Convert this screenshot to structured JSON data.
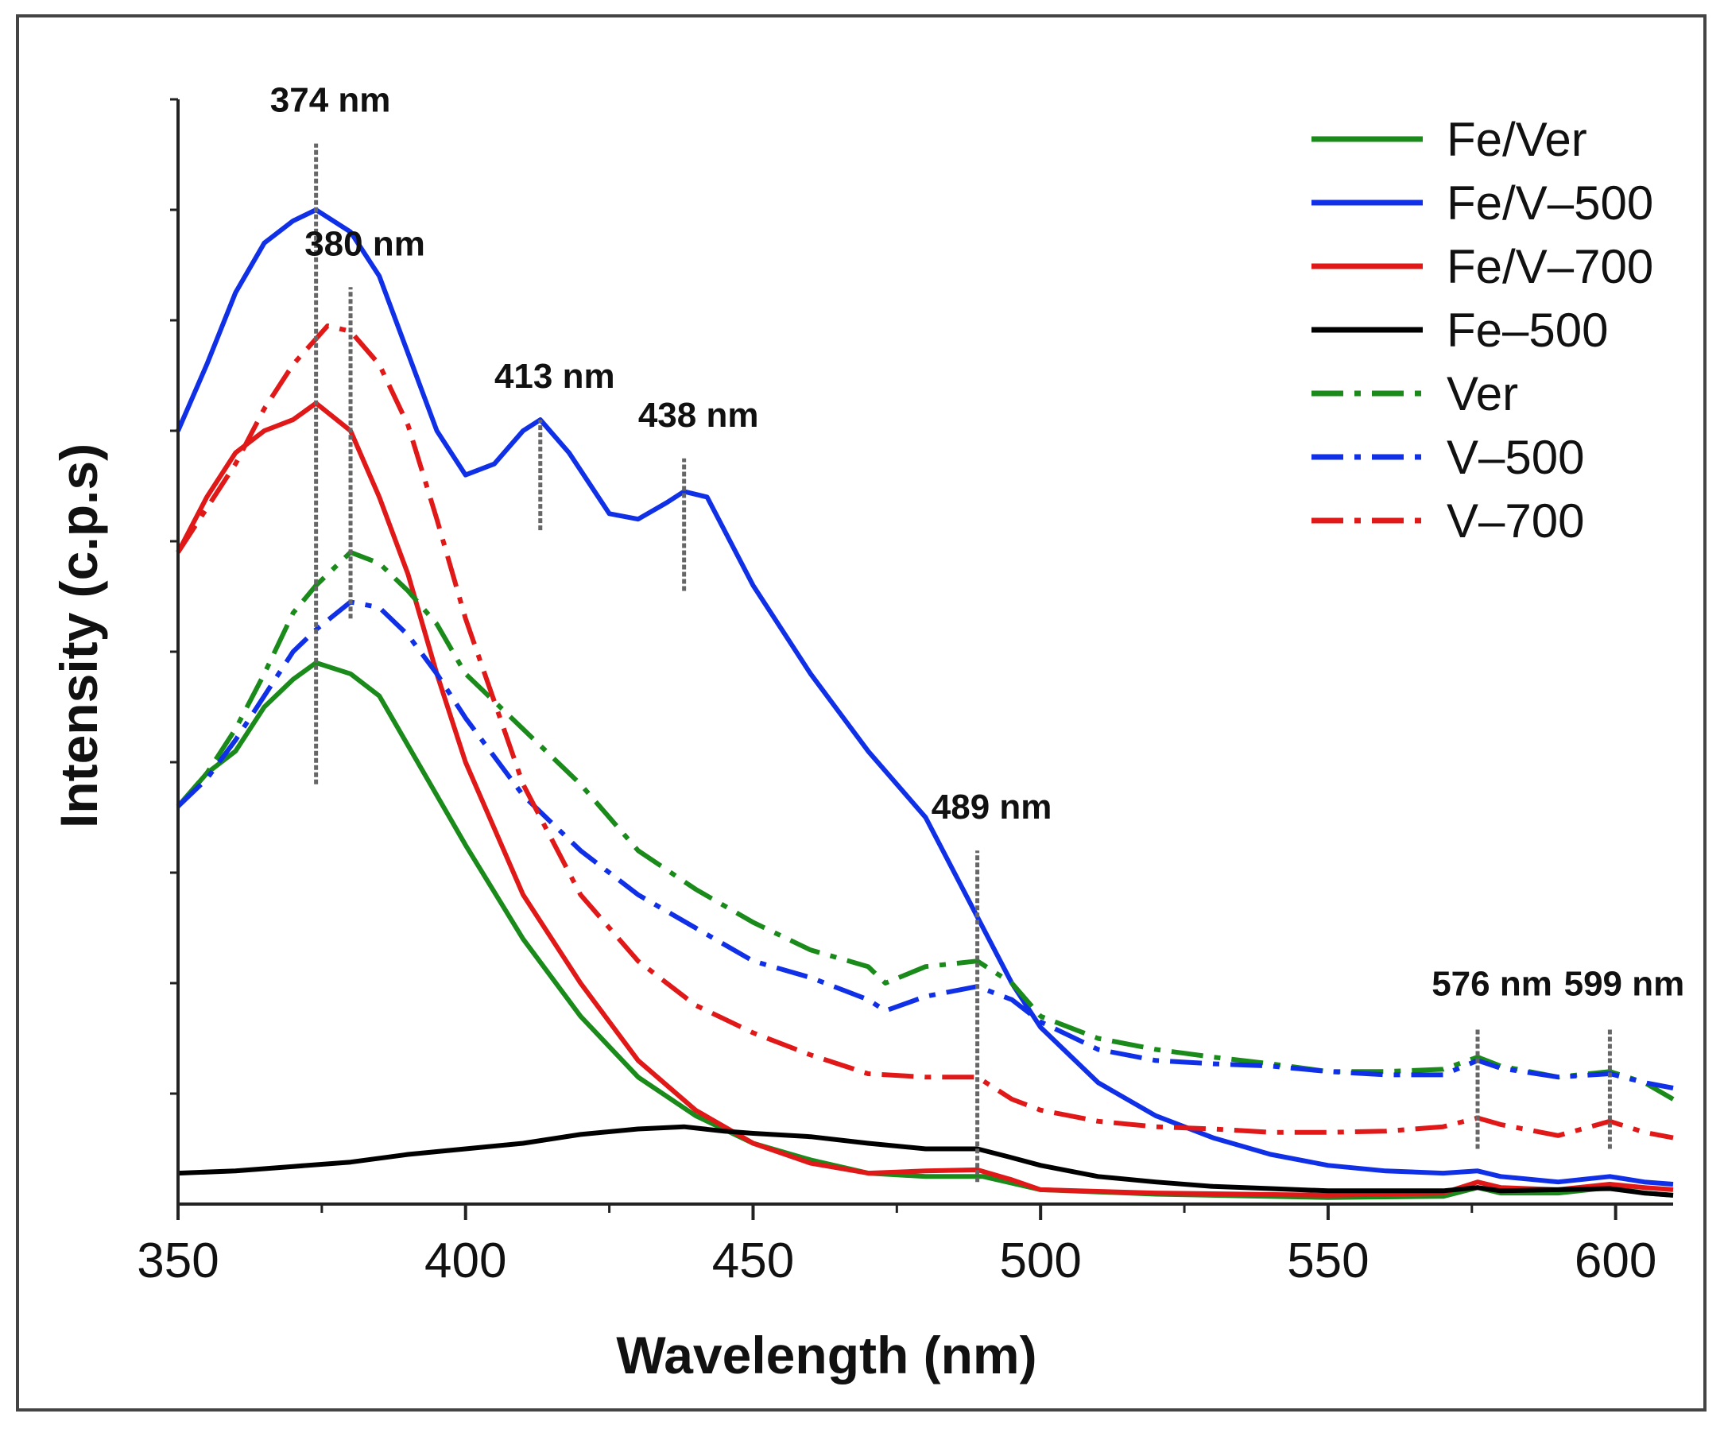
{
  "chart_data": {
    "type": "line",
    "title": "",
    "xlabel": "Wavelength (nm)",
    "ylabel": "Intensity (c.p.s)",
    "xlim": [
      350,
      610
    ],
    "ylim": [
      0,
      100
    ],
    "x_ticks": [
      350,
      400,
      450,
      500,
      550,
      600
    ],
    "x_tick_labels": [
      "350",
      "400",
      "450",
      "500",
      "550",
      "600"
    ],
    "y_tick_labels_shown": false,
    "grid": false,
    "legend_position": "top-right",
    "series": [
      {
        "name": "Fe/Ver",
        "color": "#1a8a1a",
        "style": "solid",
        "points": [
          [
            350,
            36
          ],
          [
            355,
            39
          ],
          [
            360,
            41
          ],
          [
            365,
            45
          ],
          [
            370,
            47.5
          ],
          [
            374,
            49
          ],
          [
            380,
            48
          ],
          [
            385,
            46
          ],
          [
            390,
            41.5
          ],
          [
            395,
            37
          ],
          [
            400,
            32.5
          ],
          [
            410,
            24
          ],
          [
            420,
            17
          ],
          [
            430,
            11.5
          ],
          [
            440,
            8
          ],
          [
            450,
            5.5
          ],
          [
            460,
            4
          ],
          [
            470,
            2.8
          ],
          [
            480,
            2.5
          ],
          [
            490,
            2.5
          ],
          [
            500,
            1.3
          ],
          [
            520,
            0.9
          ],
          [
            550,
            0.6
          ],
          [
            570,
            0.7
          ],
          [
            576,
            1.5
          ],
          [
            580,
            1
          ],
          [
            590,
            1
          ],
          [
            599,
            1.5
          ],
          [
            605,
            1
          ],
          [
            610,
            0.8
          ]
        ]
      },
      {
        "name": "Fe/V–500",
        "color": "#1030e8",
        "style": "solid",
        "points": [
          [
            350,
            70
          ],
          [
            355,
            76
          ],
          [
            360,
            82.5
          ],
          [
            365,
            87
          ],
          [
            370,
            89
          ],
          [
            374,
            90
          ],
          [
            380,
            88
          ],
          [
            385,
            84
          ],
          [
            390,
            77
          ],
          [
            395,
            70
          ],
          [
            400,
            66
          ],
          [
            405,
            67
          ],
          [
            410,
            70
          ],
          [
            413,
            71
          ],
          [
            418,
            68
          ],
          [
            425,
            62.5
          ],
          [
            430,
            62
          ],
          [
            435,
            63.5
          ],
          [
            438,
            64.5
          ],
          [
            442,
            64
          ],
          [
            450,
            56
          ],
          [
            460,
            48
          ],
          [
            470,
            41
          ],
          [
            480,
            35
          ],
          [
            489,
            26
          ],
          [
            495,
            20
          ],
          [
            500,
            16
          ],
          [
            510,
            11
          ],
          [
            520,
            8
          ],
          [
            530,
            6
          ],
          [
            540,
            4.5
          ],
          [
            550,
            3.5
          ],
          [
            560,
            3
          ],
          [
            570,
            2.8
          ],
          [
            576,
            3
          ],
          [
            580,
            2.5
          ],
          [
            590,
            2
          ],
          [
            599,
            2.5
          ],
          [
            605,
            2
          ],
          [
            610,
            1.8
          ]
        ]
      },
      {
        "name": "Fe/V–700",
        "color": "#e01818",
        "style": "solid",
        "points": [
          [
            350,
            59
          ],
          [
            355,
            64
          ],
          [
            360,
            68
          ],
          [
            365,
            70
          ],
          [
            370,
            71
          ],
          [
            374,
            72.5
          ],
          [
            380,
            70
          ],
          [
            385,
            64
          ],
          [
            390,
            57
          ],
          [
            395,
            48
          ],
          [
            400,
            40
          ],
          [
            410,
            28
          ],
          [
            420,
            20
          ],
          [
            430,
            13
          ],
          [
            440,
            8.5
          ],
          [
            450,
            5.5
          ],
          [
            460,
            3.7
          ],
          [
            470,
            2.8
          ],
          [
            480,
            3
          ],
          [
            489,
            3.1
          ],
          [
            495,
            2.2
          ],
          [
            500,
            1.3
          ],
          [
            520,
            1
          ],
          [
            550,
            0.8
          ],
          [
            570,
            1
          ],
          [
            576,
            2
          ],
          [
            580,
            1.5
          ],
          [
            590,
            1.3
          ],
          [
            599,
            1.8
          ],
          [
            605,
            1.5
          ],
          [
            610,
            1.3
          ]
        ]
      },
      {
        "name": "Fe–500",
        "color": "#000000",
        "style": "solid",
        "points": [
          [
            350,
            2.8
          ],
          [
            360,
            3
          ],
          [
            370,
            3.4
          ],
          [
            380,
            3.8
          ],
          [
            390,
            4.5
          ],
          [
            400,
            5
          ],
          [
            410,
            5.5
          ],
          [
            420,
            6.3
          ],
          [
            430,
            6.8
          ],
          [
            438,
            7
          ],
          [
            445,
            6.6
          ],
          [
            450,
            6.4
          ],
          [
            460,
            6.1
          ],
          [
            470,
            5.5
          ],
          [
            480,
            5
          ],
          [
            489,
            5
          ],
          [
            495,
            4.2
          ],
          [
            500,
            3.5
          ],
          [
            510,
            2.5
          ],
          [
            520,
            2
          ],
          [
            530,
            1.6
          ],
          [
            540,
            1.4
          ],
          [
            550,
            1.2
          ],
          [
            560,
            1.2
          ],
          [
            570,
            1.2
          ],
          [
            576,
            1.5
          ],
          [
            580,
            1.2
          ],
          [
            590,
            1.3
          ],
          [
            599,
            1.4
          ],
          [
            605,
            1
          ],
          [
            610,
            0.8
          ]
        ]
      },
      {
        "name": "Ver",
        "color": "#1a8a1a",
        "style": "dashdot",
        "points": [
          [
            350,
            36
          ],
          [
            355,
            39
          ],
          [
            360,
            43
          ],
          [
            365,
            48
          ],
          [
            370,
            53.5
          ],
          [
            374,
            56
          ],
          [
            380,
            59
          ],
          [
            385,
            58
          ],
          [
            390,
            55.5
          ],
          [
            395,
            52.5
          ],
          [
            400,
            48
          ],
          [
            410,
            43
          ],
          [
            420,
            38
          ],
          [
            430,
            32
          ],
          [
            440,
            28.5
          ],
          [
            450,
            25.5
          ],
          [
            460,
            23
          ],
          [
            470,
            21.5
          ],
          [
            473,
            20
          ],
          [
            480,
            21.5
          ],
          [
            489,
            22
          ],
          [
            495,
            20
          ],
          [
            500,
            17
          ],
          [
            510,
            15
          ],
          [
            520,
            14
          ],
          [
            530,
            13.3
          ],
          [
            540,
            12.7
          ],
          [
            550,
            12
          ],
          [
            560,
            12
          ],
          [
            570,
            12.2
          ],
          [
            576,
            13.3
          ],
          [
            580,
            12.5
          ],
          [
            590,
            11.5
          ],
          [
            599,
            12
          ],
          [
            605,
            11
          ],
          [
            610,
            9.5
          ]
        ]
      },
      {
        "name": "V–500",
        "color": "#1030e8",
        "style": "dashdot",
        "points": [
          [
            350,
            36
          ],
          [
            355,
            38.5
          ],
          [
            360,
            42
          ],
          [
            365,
            46
          ],
          [
            370,
            50
          ],
          [
            374,
            52
          ],
          [
            380,
            54.5
          ],
          [
            385,
            54
          ],
          [
            390,
            51.5
          ],
          [
            395,
            48
          ],
          [
            400,
            44
          ],
          [
            410,
            37
          ],
          [
            420,
            32
          ],
          [
            430,
            28
          ],
          [
            440,
            25
          ],
          [
            450,
            22
          ],
          [
            460,
            20.5
          ],
          [
            470,
            18.5
          ],
          [
            473,
            17.5
          ],
          [
            480,
            18.8
          ],
          [
            489,
            19.7
          ],
          [
            495,
            18.5
          ],
          [
            500,
            16.5
          ],
          [
            510,
            14
          ],
          [
            520,
            13
          ],
          [
            530,
            12.7
          ],
          [
            540,
            12.5
          ],
          [
            550,
            12
          ],
          [
            560,
            11.7
          ],
          [
            570,
            11.7
          ],
          [
            576,
            13
          ],
          [
            580,
            12.3
          ],
          [
            590,
            11.5
          ],
          [
            599,
            11.8
          ],
          [
            605,
            11
          ],
          [
            610,
            10.5
          ]
        ]
      },
      {
        "name": "V–700",
        "color": "#e01818",
        "style": "dashdot",
        "points": [
          [
            350,
            59
          ],
          [
            355,
            63
          ],
          [
            360,
            67
          ],
          [
            365,
            72
          ],
          [
            370,
            76
          ],
          [
            376,
            79.5
          ],
          [
            380,
            79
          ],
          [
            385,
            76
          ],
          [
            390,
            70.5
          ],
          [
            395,
            62
          ],
          [
            400,
            53
          ],
          [
            410,
            38
          ],
          [
            420,
            28
          ],
          [
            430,
            22
          ],
          [
            440,
            18
          ],
          [
            450,
            15.5
          ],
          [
            460,
            13.5
          ],
          [
            470,
            11.8
          ],
          [
            480,
            11.5
          ],
          [
            489,
            11.5
          ],
          [
            495,
            9.5
          ],
          [
            500,
            8.5
          ],
          [
            510,
            7.5
          ],
          [
            520,
            7
          ],
          [
            530,
            6.8
          ],
          [
            540,
            6.5
          ],
          [
            550,
            6.5
          ],
          [
            560,
            6.6
          ],
          [
            570,
            7
          ],
          [
            576,
            7.8
          ],
          [
            580,
            7.2
          ],
          [
            590,
            6.2
          ],
          [
            599,
            7.5
          ],
          [
            605,
            6.5
          ],
          [
            610,
            6
          ]
        ]
      }
    ],
    "peak_markers": [
      {
        "label": "374 nm",
        "x": 374,
        "y_from": 38,
        "y_to": 96
      },
      {
        "label": "380 nm",
        "x": 380,
        "y_from": 53,
        "y_to": 83
      },
      {
        "label": "413 nm",
        "x": 413,
        "y_from": 61,
        "y_to": 71
      },
      {
        "label": "438 nm",
        "x": 438,
        "y_from": 55.5,
        "y_to": 67.5
      },
      {
        "label": "489 nm",
        "x": 489,
        "y_from": 2,
        "y_to": 32
      },
      {
        "label": "576 nm",
        "x": 576,
        "y_from": 5,
        "y_to": 16
      },
      {
        "label": "599 nm",
        "x": 599,
        "y_from": 5,
        "y_to": 16
      }
    ]
  }
}
